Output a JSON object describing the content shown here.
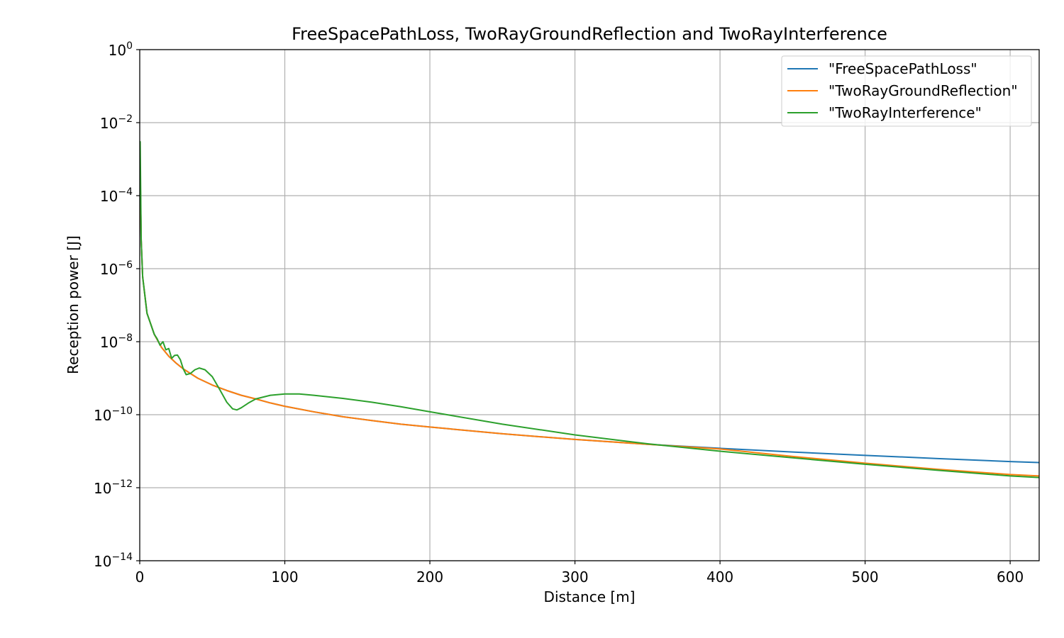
{
  "chart_data": {
    "type": "line",
    "title": "FreeSpacePathLoss, TwoRayGroundReflection and TwoRayInterference",
    "xlabel": "Distance [m]",
    "ylabel": "Reception power [J]",
    "xlim": [
      0,
      620
    ],
    "ylim": [
      1e-14,
      1
    ],
    "yscale": "log",
    "grid": true,
    "legend_position": "top-right",
    "x_ticks": [
      {
        "value": 0,
        "label": "0"
      },
      {
        "value": 100,
        "label": "100"
      },
      {
        "value": 200,
        "label": "200"
      },
      {
        "value": 300,
        "label": "300"
      },
      {
        "value": 400,
        "label": "400"
      },
      {
        "value": 500,
        "label": "500"
      },
      {
        "value": 600,
        "label": "600"
      }
    ],
    "y_ticks": [
      {
        "value": 1,
        "base": "10",
        "exponent": "0"
      },
      {
        "value": 0.01,
        "base": "10",
        "exponent": "−2"
      },
      {
        "value": 0.0001,
        "base": "10",
        "exponent": "−4"
      },
      {
        "value": 1e-06,
        "base": "10",
        "exponent": "−6"
      },
      {
        "value": 1e-08,
        "base": "10",
        "exponent": "−8"
      },
      {
        "value": 1e-10,
        "base": "10",
        "exponent": "−10"
      },
      {
        "value": 1e-12,
        "base": "10",
        "exponent": "−12"
      },
      {
        "value": 1e-14,
        "base": "10",
        "exponent": "−14"
      }
    ],
    "series": [
      {
        "name": "\"FreeSpacePathLoss\"",
        "color": "#1f77b4",
        "points": [
          [
            0.3,
            0.0005
          ],
          [
            1,
            6e-06
          ],
          [
            2,
            6e-07
          ],
          [
            5,
            6e-08
          ],
          [
            10,
            1.6e-08
          ],
          [
            15,
            7e-09
          ],
          [
            20,
            4e-09
          ],
          [
            25,
            2.6e-09
          ],
          [
            30,
            1.8e-09
          ],
          [
            40,
            1e-09
          ],
          [
            50,
            6.5e-10
          ],
          [
            60,
            4.6e-10
          ],
          [
            70,
            3.4e-10
          ],
          [
            80,
            2.7e-10
          ],
          [
            90,
            2.1e-10
          ],
          [
            100,
            1.7e-10
          ],
          [
            120,
            1.2e-10
          ],
          [
            140,
            8.8e-11
          ],
          [
            160,
            6.9e-11
          ],
          [
            180,
            5.5e-11
          ],
          [
            200,
            4.6e-11
          ],
          [
            250,
            3e-11
          ],
          [
            300,
            2.1e-11
          ],
          [
            350,
            1.55e-11
          ],
          [
            400,
            1.2e-11
          ],
          [
            450,
            9.5e-12
          ],
          [
            500,
            7.7e-12
          ],
          [
            550,
            6.3e-12
          ],
          [
            600,
            5.2e-12
          ],
          [
            620,
            4.9e-12
          ]
        ]
      },
      {
        "name": "\"TwoRayGroundReflection\"",
        "color": "#ff7f0e",
        "points": [
          [
            0.3,
            0.0005
          ],
          [
            1,
            6e-06
          ],
          [
            2,
            6e-07
          ],
          [
            5,
            6e-08
          ],
          [
            10,
            1.6e-08
          ],
          [
            15,
            7e-09
          ],
          [
            20,
            4e-09
          ],
          [
            25,
            2.6e-09
          ],
          [
            30,
            1.8e-09
          ],
          [
            40,
            1e-09
          ],
          [
            50,
            6.5e-10
          ],
          [
            60,
            4.6e-10
          ],
          [
            70,
            3.4e-10
          ],
          [
            80,
            2.7e-10
          ],
          [
            90,
            2.1e-10
          ],
          [
            100,
            1.7e-10
          ],
          [
            120,
            1.2e-10
          ],
          [
            140,
            8.8e-11
          ],
          [
            160,
            6.9e-11
          ],
          [
            180,
            5.5e-11
          ],
          [
            200,
            4.6e-11
          ],
          [
            250,
            3e-11
          ],
          [
            300,
            2.1e-11
          ],
          [
            350,
            1.55e-11
          ],
          [
            400,
            1.15e-11
          ],
          [
            450,
            7.2e-12
          ],
          [
            500,
            4.7e-12
          ],
          [
            550,
            3.2e-12
          ],
          [
            600,
            2.3e-12
          ],
          [
            620,
            2.1e-12
          ]
        ]
      },
      {
        "name": "\"TwoRayInterference\"",
        "color": "#2ca02c",
        "points": [
          [
            0.3,
            0.003
          ],
          [
            1,
            6e-06
          ],
          [
            2,
            6e-07
          ],
          [
            5,
            6e-08
          ],
          [
            10,
            1.6e-08
          ],
          [
            12,
            1.2e-08
          ],
          [
            14,
            8e-09
          ],
          [
            16,
            1e-08
          ],
          [
            18,
            6e-09
          ],
          [
            20,
            6.5e-09
          ],
          [
            22,
            3.5e-09
          ],
          [
            24,
            4.2e-09
          ],
          [
            26,
            4.3e-09
          ],
          [
            28,
            3.2e-09
          ],
          [
            30,
            1.8e-09
          ],
          [
            32,
            1.25e-09
          ],
          [
            35,
            1.35e-09
          ],
          [
            38,
            1.7e-09
          ],
          [
            41,
            1.9e-09
          ],
          [
            45,
            1.7e-09
          ],
          [
            50,
            1.1e-09
          ],
          [
            55,
            5e-10
          ],
          [
            60,
            2.2e-10
          ],
          [
            64,
            1.45e-10
          ],
          [
            67,
            1.35e-10
          ],
          [
            70,
            1.55e-10
          ],
          [
            75,
            2.1e-10
          ],
          [
            80,
            2.7e-10
          ],
          [
            90,
            3.4e-10
          ],
          [
            100,
            3.7e-10
          ],
          [
            110,
            3.7e-10
          ],
          [
            120,
            3.4e-10
          ],
          [
            140,
            2.8e-10
          ],
          [
            160,
            2.2e-10
          ],
          [
            180,
            1.65e-10
          ],
          [
            200,
            1.2e-10
          ],
          [
            250,
            5.5e-11
          ],
          [
            300,
            2.8e-11
          ],
          [
            350,
            1.6e-11
          ],
          [
            400,
            1e-11
          ],
          [
            450,
            6.6e-12
          ],
          [
            500,
            4.4e-12
          ],
          [
            550,
            3e-12
          ],
          [
            600,
            2.1e-12
          ],
          [
            620,
            1.9e-12
          ]
        ]
      }
    ]
  }
}
